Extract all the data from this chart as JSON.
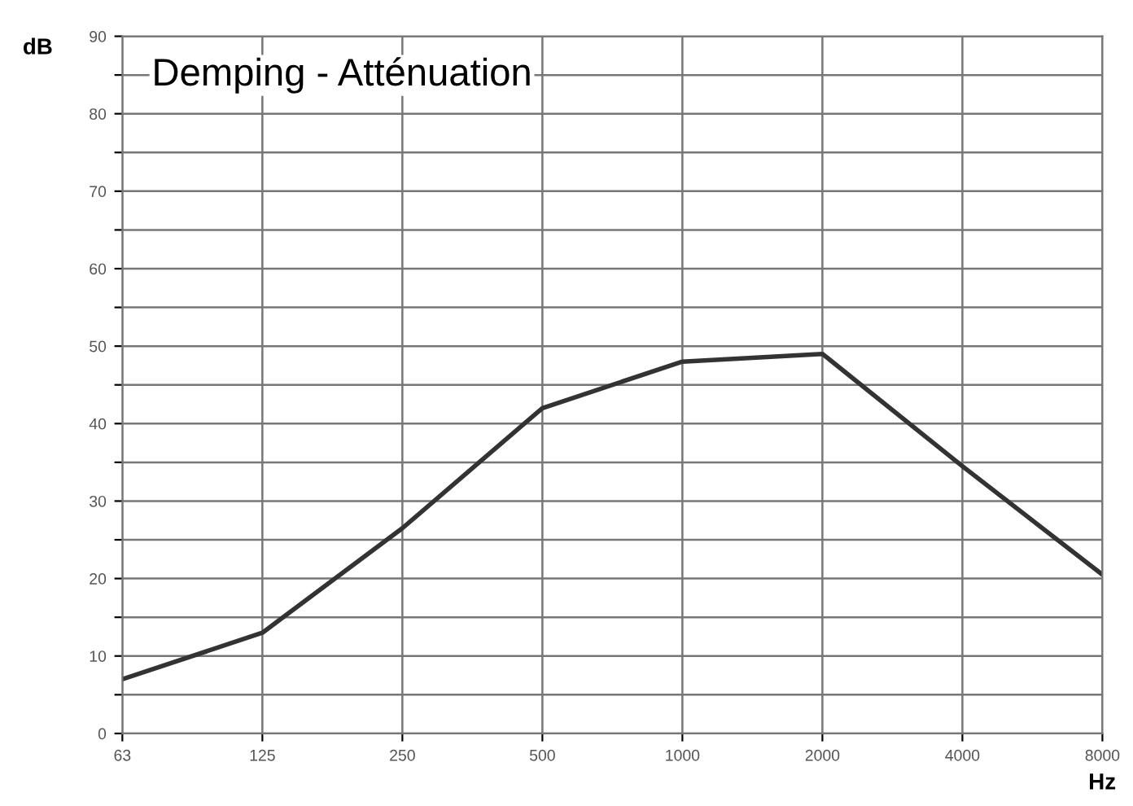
{
  "chart_data": {
    "type": "line",
    "title": "Demping - Atténuation",
    "xlabel": "Hz",
    "ylabel": "dB",
    "categories": [
      "63",
      "125",
      "250",
      "500",
      "1000",
      "2000",
      "4000",
      "8000"
    ],
    "series": [
      {
        "color": "#333333",
        "values": [
          7,
          13,
          26.5,
          42,
          48,
          49,
          34.5,
          20.5
        ]
      }
    ],
    "ylim": [
      0,
      90
    ],
    "yticks": [
      0,
      {
        "value": 5,
        "label": null
      },
      10,
      {
        "value": 15,
        "label": null
      },
      20,
      {
        "value": 25,
        "label": null
      },
      30,
      {
        "value": 35,
        "label": null
      },
      40,
      {
        "value": 45,
        "label": null
      },
      50,
      {
        "value": 55,
        "label": null
      },
      60,
      {
        "value": 65,
        "label": null
      },
      70,
      {
        "value": 75,
        "label": null
      },
      80,
      {
        "value": 85,
        "label": null
      },
      90
    ],
    "grid": true,
    "legend": false,
    "marker": "none",
    "line_style": "solid"
  }
}
